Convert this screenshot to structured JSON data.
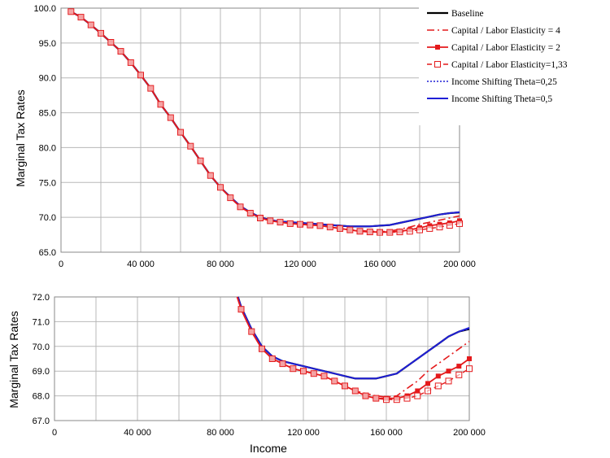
{
  "chart_data": [
    {
      "type": "line",
      "title": "",
      "xlabel": "",
      "ylabel": "Marginal Tax Rates",
      "xlim": [
        0,
        200000
      ],
      "ylim": [
        65,
        100
      ],
      "xticks": [
        "0",
        "40 000",
        "80 000",
        "120 000",
        "160 000",
        "200 000"
      ],
      "yticks": [
        "65.0",
        "70.0",
        "75.0",
        "80.0",
        "85.0",
        "90.0",
        "95.0",
        "100.0"
      ],
      "grid": true,
      "legend": "top-right",
      "x": [
        5000,
        10000,
        15000,
        20000,
        25000,
        30000,
        35000,
        40000,
        45000,
        50000,
        55000,
        60000,
        65000,
        70000,
        75000,
        80000,
        85000,
        90000,
        95000,
        100000,
        105000,
        110000,
        115000,
        120000,
        125000,
        130000,
        135000,
        140000,
        145000,
        150000,
        155000,
        160000,
        165000,
        170000,
        175000,
        180000,
        185000,
        190000,
        195000,
        200000
      ],
      "series": [
        {
          "name": "Baseline",
          "color": "#000000",
          "values": [
            99.5,
            98.7,
            97.6,
            96.4,
            95.1,
            93.8,
            92.2,
            90.4,
            88.5,
            86.2,
            84.3,
            82.2,
            80.2,
            78.1,
            76.0,
            74.3,
            72.9,
            71.6,
            70.7,
            70.0,
            69.6,
            69.4,
            69.3,
            69.2,
            69.1,
            69.0,
            68.9,
            68.8,
            68.7,
            68.7,
            68.7,
            68.8,
            68.9,
            69.2,
            69.5,
            69.8,
            70.1,
            70.4,
            70.6,
            70.7
          ]
        },
        {
          "name": "Capital / Labor Elasticity = 4",
          "color": "#e41a1c",
          "values": [
            99.5,
            98.7,
            97.6,
            96.4,
            95.1,
            93.8,
            92.2,
            90.4,
            88.5,
            86.2,
            84.3,
            82.2,
            80.2,
            78.1,
            76.0,
            74.3,
            72.8,
            71.5,
            70.6,
            69.9,
            69.5,
            69.3,
            69.1,
            69.0,
            68.9,
            68.8,
            68.6,
            68.4,
            68.2,
            68.1,
            68.0,
            67.95,
            68.0,
            68.3,
            68.6,
            69.0,
            69.3,
            69.6,
            69.9,
            70.2
          ]
        },
        {
          "name": "Capital / Labor Elasticity = 2",
          "color": "#e41a1c",
          "values": [
            99.5,
            98.7,
            97.6,
            96.4,
            95.1,
            93.8,
            92.2,
            90.4,
            88.5,
            86.2,
            84.3,
            82.2,
            80.2,
            78.1,
            76.0,
            74.3,
            72.8,
            71.5,
            70.6,
            69.9,
            69.5,
            69.3,
            69.1,
            69.0,
            68.9,
            68.8,
            68.6,
            68.4,
            68.2,
            68.0,
            67.9,
            67.9,
            67.9,
            68.0,
            68.2,
            68.5,
            68.8,
            69.0,
            69.2,
            69.5
          ]
        },
        {
          "name": "Capital / Labor Elasticity=1,33",
          "color": "#e41a1c",
          "values": [
            99.5,
            98.7,
            97.6,
            96.4,
            95.1,
            93.8,
            92.2,
            90.4,
            88.5,
            86.2,
            84.3,
            82.2,
            80.2,
            78.1,
            76.0,
            74.3,
            72.8,
            71.5,
            70.6,
            69.9,
            69.5,
            69.3,
            69.1,
            69.0,
            68.9,
            68.8,
            68.6,
            68.4,
            68.2,
            68.0,
            67.9,
            67.85,
            67.85,
            67.9,
            68.0,
            68.2,
            68.4,
            68.6,
            68.85,
            69.1
          ]
        },
        {
          "name": "Income Shifting Theta=0,25",
          "color": "#1f1fd6",
          "values": [
            99.5,
            98.7,
            97.6,
            96.4,
            95.1,
            93.8,
            92.2,
            90.4,
            88.5,
            86.2,
            84.3,
            82.2,
            80.2,
            78.1,
            76.0,
            74.3,
            72.9,
            71.6,
            70.7,
            70.0,
            69.6,
            69.4,
            69.3,
            69.2,
            69.1,
            69.0,
            68.9,
            68.8,
            68.7,
            68.7,
            68.7,
            68.8,
            68.9,
            69.2,
            69.5,
            69.8,
            70.1,
            70.4,
            70.6,
            70.7
          ]
        },
        {
          "name": "Income Shifting Theta=0,5",
          "color": "#1f1fd6",
          "values": [
            99.5,
            98.7,
            97.6,
            96.4,
            95.1,
            93.8,
            92.2,
            90.4,
            88.5,
            86.2,
            84.3,
            82.2,
            80.2,
            78.1,
            76.0,
            74.3,
            72.9,
            71.6,
            70.7,
            70.0,
            69.6,
            69.4,
            69.3,
            69.2,
            69.1,
            69.0,
            68.9,
            68.8,
            68.7,
            68.7,
            68.7,
            68.8,
            68.9,
            69.2,
            69.5,
            69.8,
            70.1,
            70.4,
            70.6,
            70.75
          ]
        }
      ]
    },
    {
      "type": "line",
      "title": "",
      "xlabel": "Income",
      "ylabel": "Marginal Tax Rates",
      "xlim": [
        0,
        200000
      ],
      "ylim": [
        67,
        72
      ],
      "xticks": [
        "0",
        "40 000",
        "80 000",
        "120 000",
        "160 000",
        "200 000"
      ],
      "yticks": [
        "67.0",
        "68.0",
        "69.0",
        "70.0",
        "71.0",
        "72.0"
      ],
      "grid": true,
      "legend": "none",
      "note": "zoom of the same six series (same data as above)"
    }
  ]
}
